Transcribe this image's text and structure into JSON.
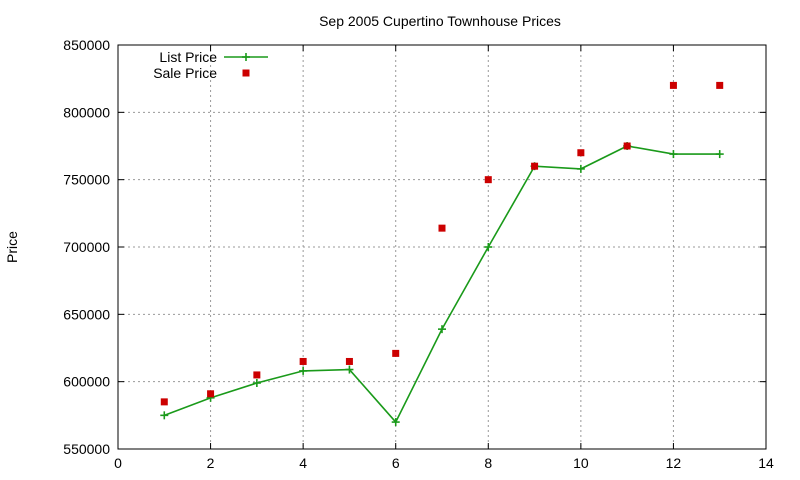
{
  "chart_data": {
    "type": "scatter",
    "title": "Sep 2005 Cupertino Townhouse Prices",
    "xlabel": "",
    "ylabel": "Price",
    "xlim": [
      0,
      14
    ],
    "ylim": [
      550000,
      850000
    ],
    "xticks": [
      0,
      2,
      4,
      6,
      8,
      10,
      12,
      14
    ],
    "yticks": [
      550000,
      600000,
      650000,
      700000,
      750000,
      800000,
      850000
    ],
    "grid": true,
    "legend_position": "top-left",
    "series": [
      {
        "name": "List Price",
        "kind": "line-with-markers",
        "marker": "plus",
        "color": "#1a9a1a",
        "points": [
          [
            1,
            575000
          ],
          [
            2,
            588000
          ],
          [
            3,
            599000
          ],
          [
            4,
            608000
          ],
          [
            5,
            609000
          ],
          [
            6,
            570000
          ],
          [
            7,
            639000
          ],
          [
            8,
            700000
          ],
          [
            9,
            760000
          ],
          [
            10,
            758000
          ],
          [
            11,
            775000
          ],
          [
            12,
            769000
          ],
          [
            13,
            769000
          ]
        ]
      },
      {
        "name": "Sale Price",
        "kind": "points",
        "marker": "square",
        "color": "#cc0000",
        "points": [
          [
            1,
            585000
          ],
          [
            2,
            591000
          ],
          [
            3,
            605000
          ],
          [
            4,
            615000
          ],
          [
            5,
            615000
          ],
          [
            6,
            621000
          ],
          [
            7,
            714000
          ],
          [
            8,
            750000
          ],
          [
            9,
            760000
          ],
          [
            10,
            770000
          ],
          [
            11,
            775000
          ],
          [
            12,
            820000
          ],
          [
            13,
            820000
          ]
        ]
      }
    ]
  }
}
